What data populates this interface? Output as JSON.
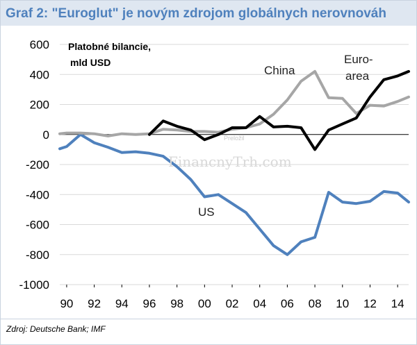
{
  "title": "Graf 2: \"Euroglut\" je novým zdrojom globálnych nerovnováh",
  "source": "Zdroj: Deutsche Bank; IMF",
  "watermark": {
    "text": "FinancnyTrh.com",
    "overlay": "Preložil"
  },
  "colors": {
    "title": "#4f81bd",
    "header_bg": "#dfe7f1",
    "us": "#4f81bd",
    "china": "#a6a6a6",
    "euro_area": "#000000"
  },
  "chart_data": {
    "type": "line",
    "units_label": [
      "Platobné bilancie,",
      "mld USD"
    ],
    "ylim": [
      -1000,
      600
    ],
    "yticks": [
      600,
      400,
      200,
      0,
      -200,
      -400,
      -600,
      -800,
      -1000
    ],
    "xlim": [
      1989.5,
      2014.8
    ],
    "xticks": [
      {
        "year": 1990,
        "label": "90"
      },
      {
        "year": 1992,
        "label": "92"
      },
      {
        "year": 1994,
        "label": "94"
      },
      {
        "year": 1996,
        "label": "96"
      },
      {
        "year": 1998,
        "label": "98"
      },
      {
        "year": 2000,
        "label": "00"
      },
      {
        "year": 2002,
        "label": "02"
      },
      {
        "year": 2004,
        "label": "04"
      },
      {
        "year": 2006,
        "label": "06"
      },
      {
        "year": 2008,
        "label": "08"
      },
      {
        "year": 2010,
        "label": "10"
      },
      {
        "year": 2012,
        "label": "12"
      },
      {
        "year": 2014,
        "label": "14"
      }
    ],
    "series": [
      {
        "name": "US",
        "color": "#4f81bd",
        "x": [
          1989.5,
          1990,
          1991,
          1992,
          1993,
          1994,
          1995,
          1996,
          1997,
          1998,
          1999,
          2000,
          2001,
          2002,
          2003,
          2004,
          2005,
          2006,
          2007,
          2008,
          2009,
          2010,
          2011,
          2012,
          2013,
          2014,
          2014.8
        ],
        "y": [
          -95,
          -80,
          0,
          -55,
          -85,
          -120,
          -115,
          -125,
          -145,
          -215,
          -300,
          -415,
          -400,
          -460,
          -520,
          -630,
          -740,
          -800,
          -715,
          -685,
          -385,
          -450,
          -460,
          -445,
          -380,
          -390,
          -450
        ]
      },
      {
        "name": "China",
        "color": "#a6a6a6",
        "x": [
          1989.5,
          1990,
          1991,
          1992,
          1993,
          1994,
          1995,
          1996,
          1997,
          1998,
          1999,
          2000,
          2001,
          2002,
          2003,
          2004,
          2005,
          2006,
          2007,
          2008,
          2009,
          2010,
          2011,
          2012,
          2013,
          2014,
          2014.8
        ],
        "y": [
          5,
          10,
          10,
          5,
          -10,
          5,
          0,
          5,
          35,
          30,
          20,
          20,
          15,
          35,
          45,
          70,
          135,
          230,
          355,
          420,
          245,
          240,
          140,
          195,
          190,
          220,
          250
        ]
      },
      {
        "name": "Euro-area",
        "label_lines": [
          "Euro-",
          "area"
        ],
        "color": "#000000",
        "x": [
          1996,
          1997,
          1998,
          1999,
          2000,
          2001,
          2002,
          2003,
          2004,
          2005,
          2006,
          2007,
          2008,
          2009,
          2010,
          2011,
          2012,
          2013,
          2014,
          2014.8
        ],
        "y": [
          0,
          90,
          55,
          30,
          -35,
          0,
          45,
          45,
          120,
          50,
          55,
          45,
          -100,
          30,
          70,
          110,
          250,
          365,
          390,
          420
        ]
      }
    ]
  }
}
